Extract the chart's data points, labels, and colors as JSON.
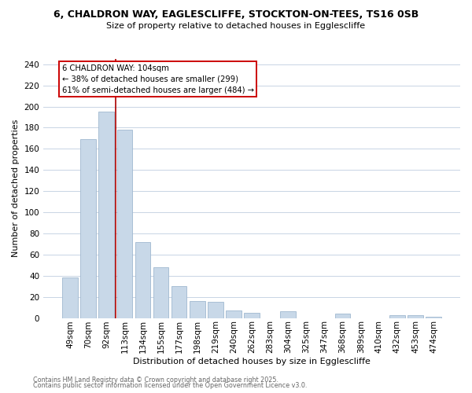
{
  "title_line1": "6, CHALDRON WAY, EAGLESCLIFFE, STOCKTON-ON-TEES, TS16 0SB",
  "title_line2": "Size of property relative to detached houses in Egglescliffe",
  "xlabel": "Distribution of detached houses by size in Egglescliffe",
  "ylabel": "Number of detached properties",
  "bar_labels": [
    "49sqm",
    "70sqm",
    "92sqm",
    "113sqm",
    "134sqm",
    "155sqm",
    "177sqm",
    "198sqm",
    "219sqm",
    "240sqm",
    "262sqm",
    "283sqm",
    "304sqm",
    "325sqm",
    "347sqm",
    "368sqm",
    "389sqm",
    "410sqm",
    "432sqm",
    "453sqm",
    "474sqm"
  ],
  "bar_values": [
    38,
    169,
    195,
    178,
    72,
    48,
    30,
    16,
    15,
    7,
    5,
    0,
    6,
    0,
    0,
    4,
    0,
    0,
    3,
    3,
    1
  ],
  "bar_color": "#c8d8e8",
  "bar_edge_color": "#a0b8d0",
  "vline_color": "#aa0000",
  "annotation_text_line1": "6 CHALDRON WAY: 104sqm",
  "annotation_text_line2": "← 38% of detached houses are smaller (299)",
  "annotation_text_line3": "61% of semi-detached houses are larger (484) →",
  "ylim": [
    0,
    245
  ],
  "yticks": [
    0,
    20,
    40,
    60,
    80,
    100,
    120,
    140,
    160,
    180,
    200,
    220,
    240
  ],
  "footer_line1": "Contains HM Land Registry data © Crown copyright and database right 2025.",
  "footer_line2": "Contains public sector information licensed under the Open Government Licence v3.0.",
  "bg_color": "#ffffff",
  "grid_color": "#c8d4e4"
}
